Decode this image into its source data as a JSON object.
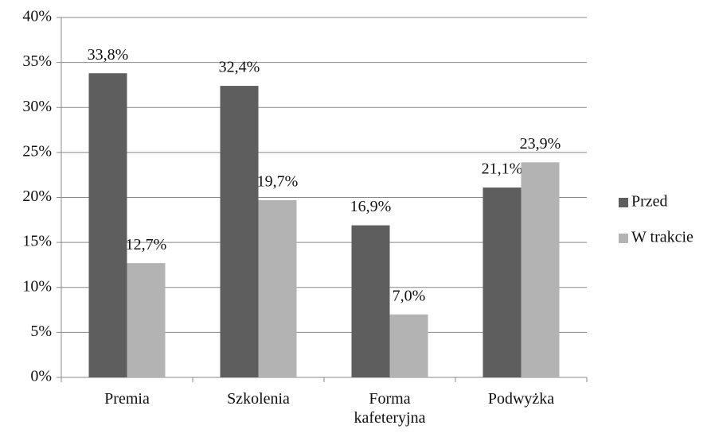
{
  "chart_data": {
    "type": "bar",
    "categories": [
      "Premia",
      "Szkolenia",
      "Forma kafeteryjna",
      "Podwyżka"
    ],
    "series": [
      {
        "name": "Przed",
        "color": "#5e5e5e",
        "values": [
          33.8,
          32.4,
          16.9,
          21.1
        ],
        "value_labels": [
          "33,8%",
          "32,4%",
          "16,9%",
          "21,1%"
        ]
      },
      {
        "name": "W trakcie",
        "color": "#b3b3b3",
        "values": [
          12.7,
          19.7,
          7.0,
          23.9
        ],
        "value_labels": [
          "12,7%",
          "19,7%",
          "7,0%",
          "23,9%"
        ]
      }
    ],
    "ylim": [
      0,
      40
    ],
    "yticks": [
      {
        "value": 0,
        "label": "0%"
      },
      {
        "value": 5,
        "label": "5%"
      },
      {
        "value": 10,
        "label": "10%"
      },
      {
        "value": 15,
        "label": "15%"
      },
      {
        "value": 20,
        "label": "20%"
      },
      {
        "value": 25,
        "label": "25%"
      },
      {
        "value": 30,
        "label": "30%"
      },
      {
        "value": 35,
        "label": "35%"
      },
      {
        "value": 40,
        "label": "40%"
      }
    ],
    "grid": true,
    "legend": "right"
  }
}
